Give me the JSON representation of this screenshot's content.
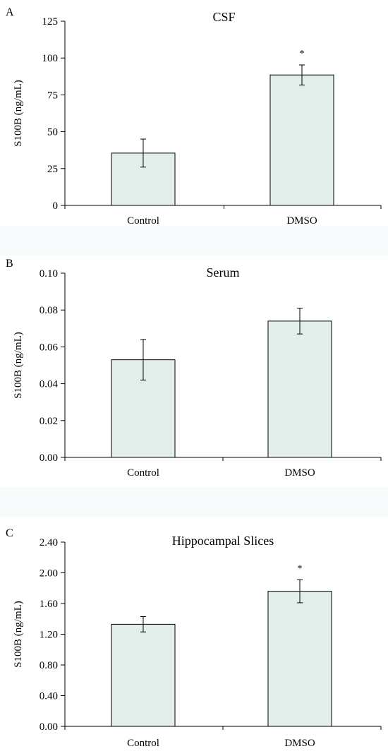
{
  "chart_data": [
    {
      "type": "bar",
      "panel_label": "A",
      "title": "CSF",
      "ylabel": "S100B (ng/mL)",
      "categories": [
        "Control",
        "DMSO"
      ],
      "values": [
        35.5,
        88.5
      ],
      "error": [
        9.5,
        6.8
      ],
      "significance": [
        "",
        "*"
      ],
      "ylim": [
        0,
        125
      ],
      "yticks": [
        0,
        25,
        50,
        75,
        100,
        125
      ],
      "ytick_labels": [
        "0",
        "25",
        "50",
        "75",
        "100",
        "125"
      ],
      "bar_color": "#e2eeea",
      "grid": false
    },
    {
      "type": "bar",
      "panel_label": "B",
      "title": "Serum",
      "ylabel": "S100B (ng/mL)",
      "categories": [
        "Control",
        "DMSO"
      ],
      "values": [
        0.053,
        0.074
      ],
      "error": [
        0.011,
        0.007
      ],
      "significance": [
        "",
        ""
      ],
      "ylim": [
        0,
        0.1
      ],
      "yticks": [
        0,
        0.02,
        0.04,
        0.06,
        0.08,
        0.1
      ],
      "ytick_labels": [
        "0.00",
        "0.02",
        "0.04",
        "0.06",
        "0.08",
        "0.10"
      ],
      "bar_color": "#e2eeea",
      "grid": false
    },
    {
      "type": "bar",
      "panel_label": "C",
      "title": "Hippocampal Slices",
      "ylabel": "S100B (ng/mL)",
      "categories": [
        "Control",
        "DMSO"
      ],
      "values": [
        1.33,
        1.76
      ],
      "error": [
        0.1,
        0.15
      ],
      "significance": [
        "",
        "*"
      ],
      "ylim": [
        0,
        2.4
      ],
      "yticks": [
        0,
        0.4,
        0.8,
        1.2,
        1.6,
        2.0,
        2.4
      ],
      "ytick_labels": [
        "0.00",
        "0.40",
        "0.80",
        "1.20",
        "1.60",
        "2.00",
        "2.40"
      ],
      "bar_color": "#e2eeea",
      "grid": false
    }
  ]
}
